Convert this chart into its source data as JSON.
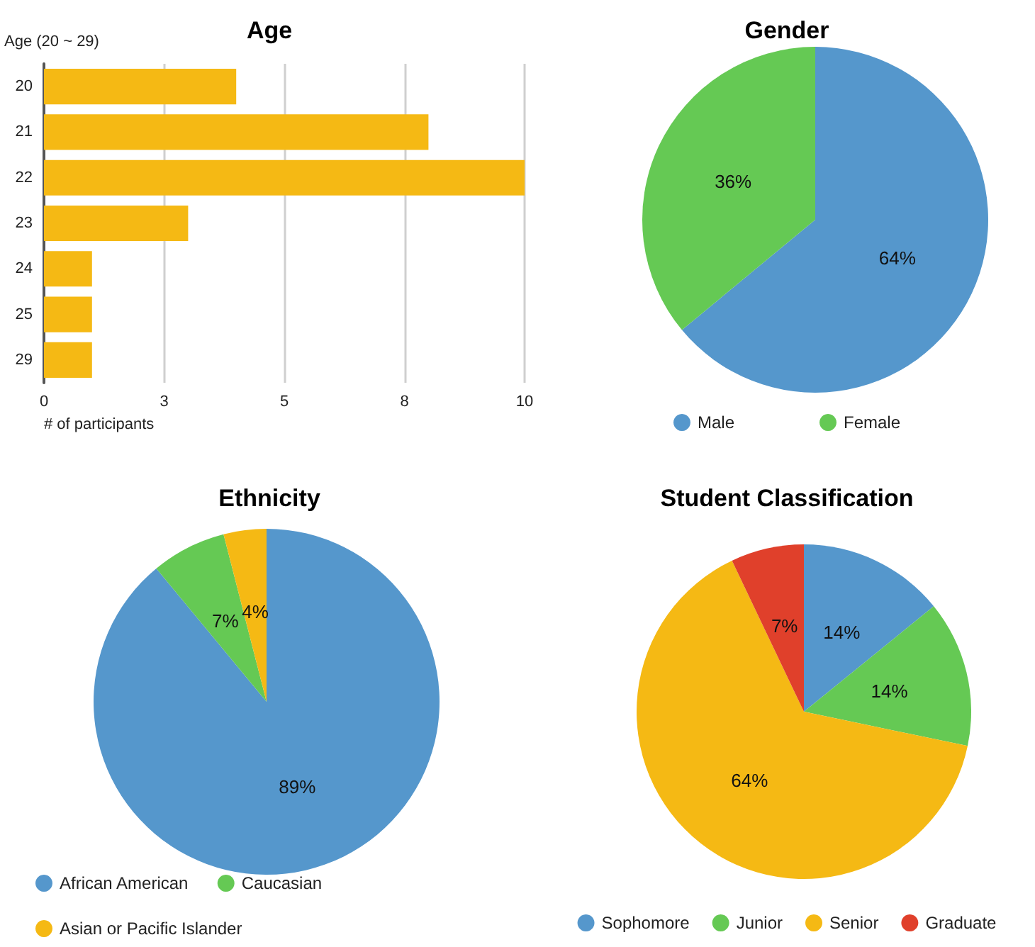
{
  "chart_data": [
    {
      "type": "bar",
      "orientation": "horizontal",
      "title": "Age",
      "ylabel": "Age (20 ~ 29)",
      "xlabel": "# of participants",
      "categories": [
        "20",
        "21",
        "22",
        "23",
        "24",
        "25",
        "29"
      ],
      "values": [
        4,
        8,
        10,
        3,
        1,
        1,
        1
      ],
      "color": "#f5b914",
      "xlim": [
        0,
        10
      ],
      "xticks": [
        0,
        {
          "value": 2.5,
          "label": "3"
        },
        5,
        {
          "value": 7.5,
          "label": "8"
        },
        10
      ],
      "grid": "x",
      "legend": false
    },
    {
      "type": "pie",
      "title": "Gender",
      "categories": [
        "Male",
        "Female"
      ],
      "values": [
        64,
        36
      ],
      "value_labels": [
        "64%",
        "36%"
      ],
      "colors": [
        "#5597cc",
        "#65c954"
      ],
      "legend": "bottom"
    },
    {
      "type": "pie",
      "title": "Ethnicity",
      "categories": [
        "African American",
        "Caucasian",
        "Asian or Pacific Islander"
      ],
      "values": [
        89,
        7,
        4
      ],
      "value_labels": [
        "89%",
        "7%",
        "4%"
      ],
      "colors": [
        "#5597cc",
        "#65c954",
        "#f5b914"
      ],
      "legend": "bottom"
    },
    {
      "type": "pie",
      "title": "Student Classification",
      "categories": [
        "Sophomore",
        "Junior",
        "Senior",
        "Graduate"
      ],
      "values": [
        14,
        14,
        64,
        7
      ],
      "value_labels": [
        "14%",
        "14%",
        "64%",
        "7%"
      ],
      "colors": [
        "#5597cc",
        "#65c954",
        "#f5b914",
        "#e0402b"
      ],
      "legend": "bottom"
    }
  ]
}
